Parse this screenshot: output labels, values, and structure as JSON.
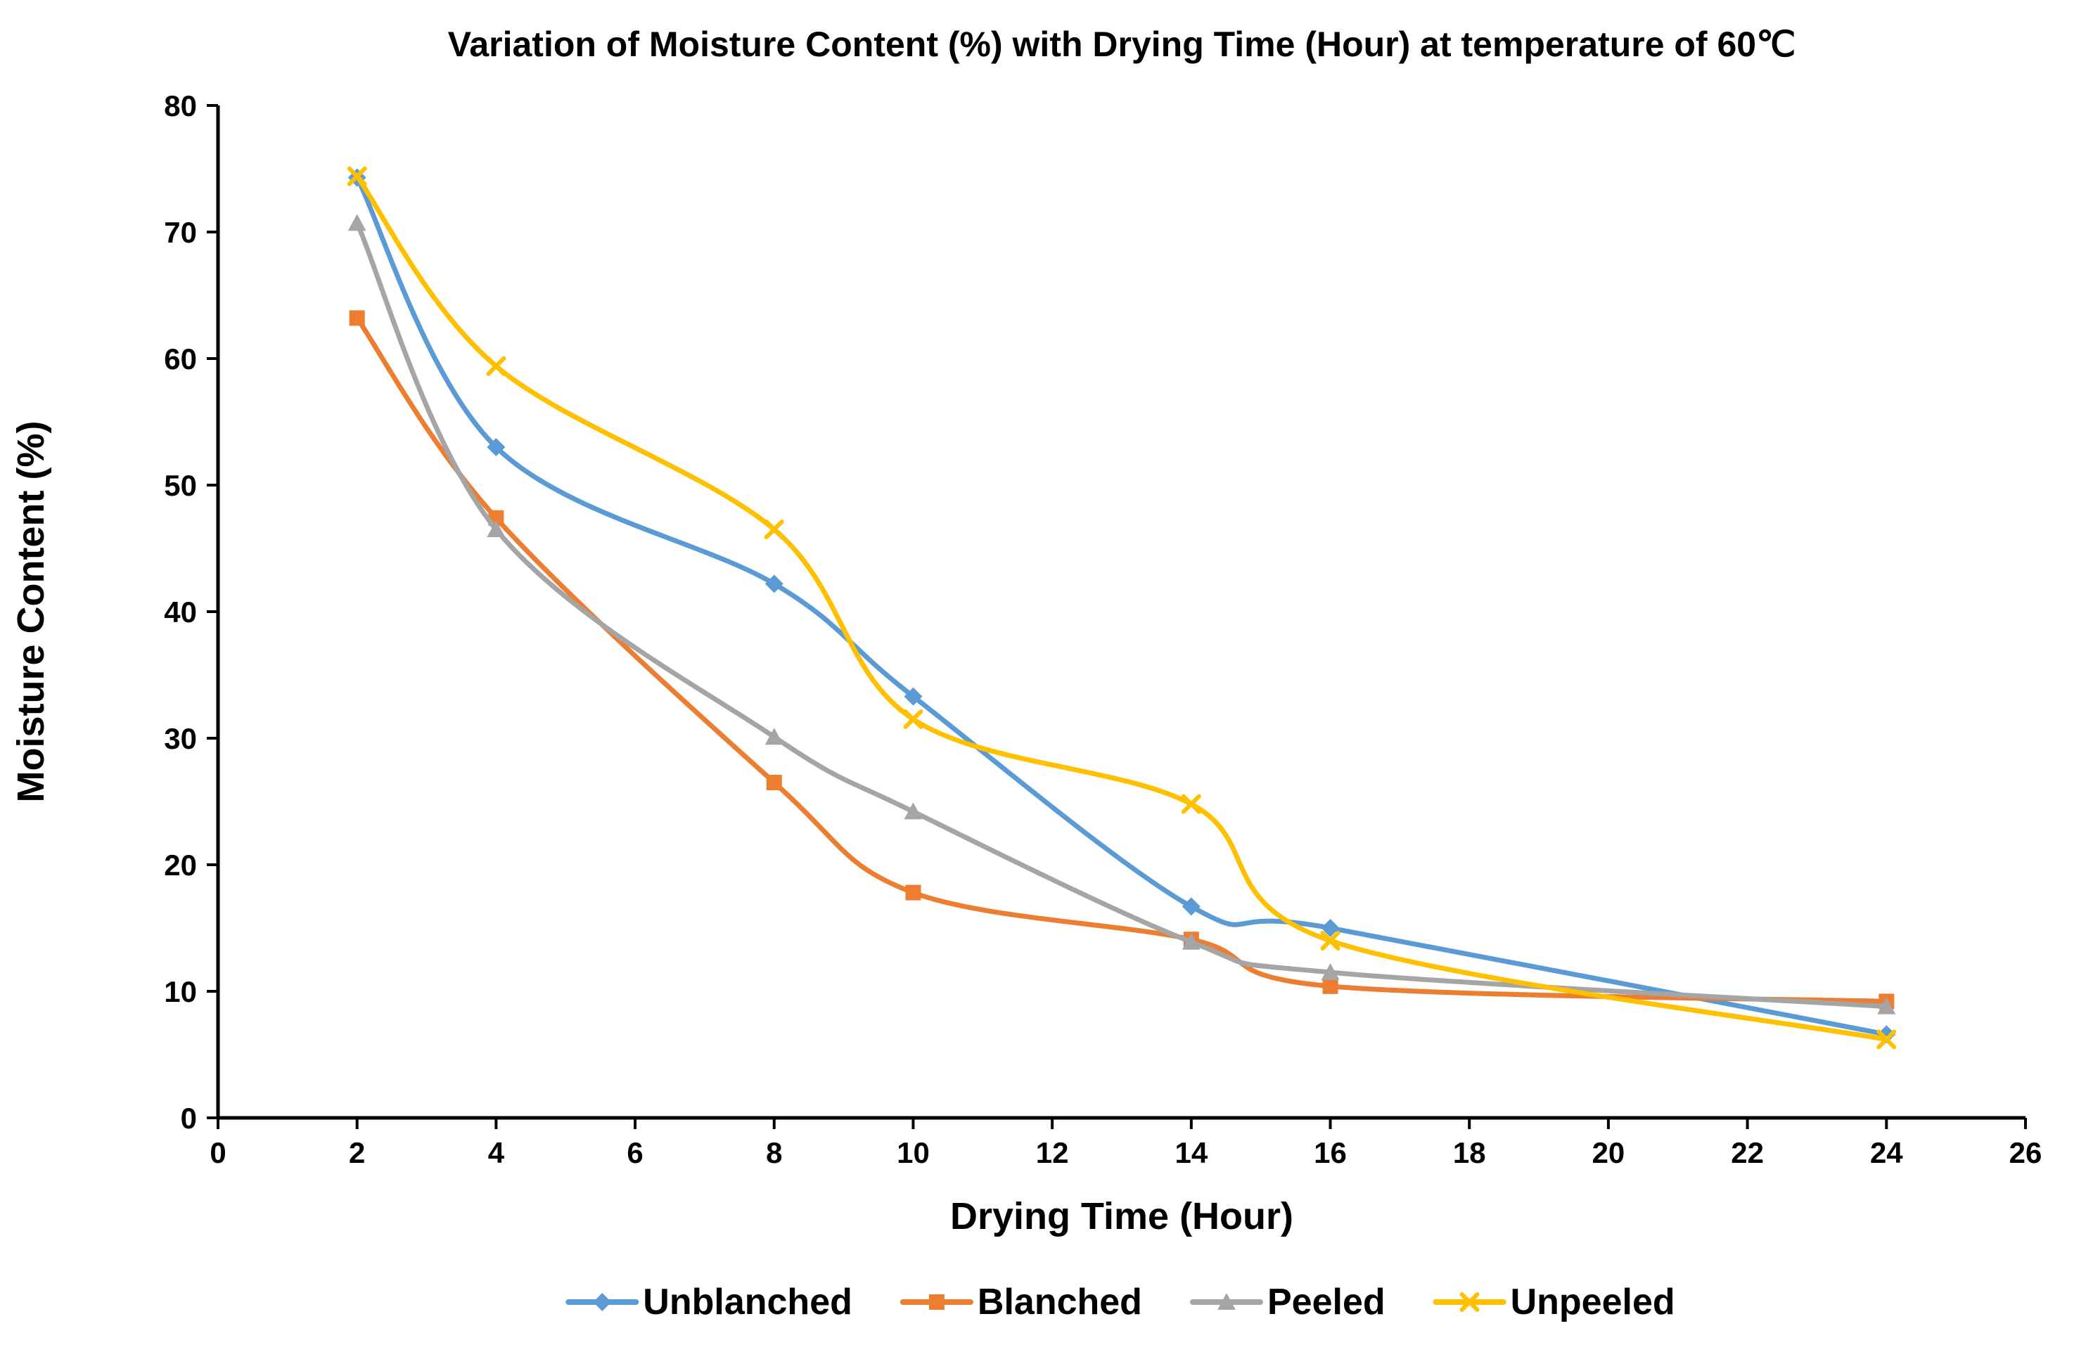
{
  "chart_data": {
    "type": "line",
    "title": "Variation of Moisture Content (%) with Drying Time (Hour) at temperature of 60℃",
    "xlabel": "Drying Time (Hour)",
    "ylabel": "Moisture Content (%)",
    "x": [
      2,
      4,
      8,
      10,
      14,
      16,
      24
    ],
    "series": [
      {
        "name": "Unblanched",
        "color": "#5B9BD5",
        "marker": "diamond",
        "values": [
          74.3,
          53.0,
          42.2,
          33.3,
          16.7,
          15.0,
          6.6
        ]
      },
      {
        "name": "Blanched",
        "color": "#ED7D31",
        "marker": "square",
        "values": [
          63.2,
          47.4,
          26.5,
          17.8,
          14.1,
          10.4,
          9.2
        ]
      },
      {
        "name": "Peeled",
        "color": "#A5A5A5",
        "marker": "triangle",
        "values": [
          70.7,
          46.5,
          30.1,
          24.2,
          13.9,
          11.5,
          8.8
        ]
      },
      {
        "name": "Unpeeled",
        "color": "#FFC000",
        "marker": "x",
        "values": [
          74.4,
          59.4,
          46.5,
          31.5,
          24.8,
          14.0,
          6.2
        ]
      }
    ],
    "xlim": [
      0,
      26
    ],
    "ylim": [
      0,
      80
    ],
    "xticks": [
      0,
      2,
      4,
      6,
      8,
      10,
      12,
      14,
      16,
      18,
      20,
      22,
      24,
      26
    ],
    "yticks": [
      0,
      10,
      20,
      30,
      40,
      50,
      60,
      70,
      80
    ],
    "grid": false,
    "smooth": true,
    "legend_position": "bottom",
    "axis_color": "#000000",
    "text_color": "#000000"
  }
}
